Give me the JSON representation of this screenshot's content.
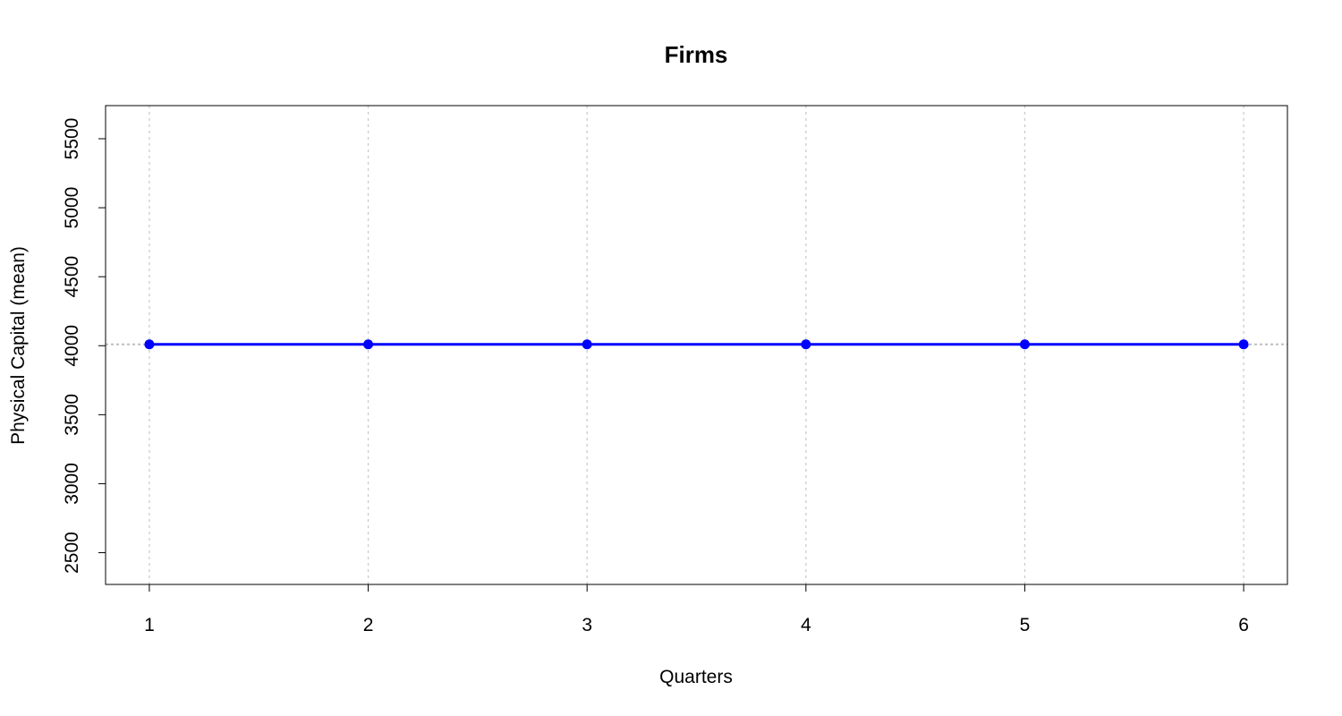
{
  "chart_data": {
    "type": "line",
    "title": "Firms",
    "xlabel": "Quarters",
    "ylabel": "Physical Capital (mean)",
    "x": [
      1,
      2,
      3,
      4,
      5,
      6
    ],
    "xticks": [
      "1",
      "2",
      "3",
      "4",
      "5",
      "6"
    ],
    "yticks": [
      2500,
      3000,
      3500,
      4000,
      4500,
      5000,
      5500
    ],
    "xlim": [
      0.8,
      6.2
    ],
    "ylim": [
      2270,
      5740
    ],
    "series": [
      {
        "values": [
          4010,
          4010,
          4010,
          4010,
          4010,
          4010
        ],
        "color": "#0000ff"
      }
    ],
    "reference_line": {
      "y": 4010,
      "color": "#bebebe"
    },
    "grid": {
      "vertical": true,
      "color": "#cccccc",
      "style": "dotted"
    },
    "legend": "none"
  }
}
